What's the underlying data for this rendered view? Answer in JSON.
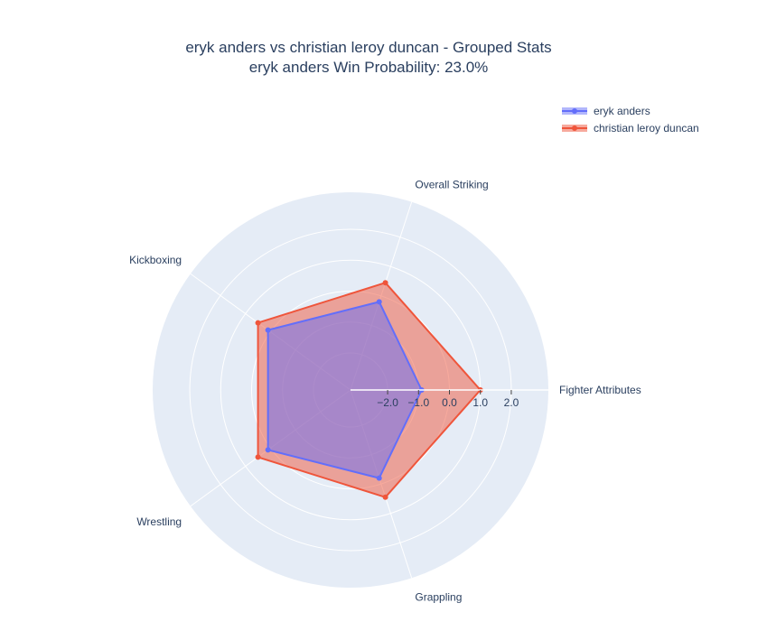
{
  "chart_data": {
    "type": "radar",
    "title": "eryk anders vs christian leroy duncan - Grouped Stats",
    "subtitle": "eryk anders Win Probability: 23.0%",
    "axes": [
      "Fighter Attributes",
      "Overall Striking",
      "Kickboxing",
      "Wrestling",
      "Grappling"
    ],
    "radial_range": [
      -3.2,
      3.2
    ],
    "radial_ticks": [
      "−2.0",
      "−1.0",
      "0.0",
      "1.0",
      "2.0"
    ],
    "radial_tick_values": [
      -2,
      -1,
      0,
      1,
      2
    ],
    "grid": true,
    "legend_position": "top-right",
    "series": [
      {
        "name": "eryk anders",
        "color": "#636efa",
        "values": [
          -0.9,
          -0.2,
          0.1,
          0.1,
          -0.2
        ]
      },
      {
        "name": "christian leroy duncan",
        "color": "#ef553b",
        "values": [
          1.0,
          0.45,
          0.5,
          0.5,
          0.45
        ]
      }
    ]
  }
}
